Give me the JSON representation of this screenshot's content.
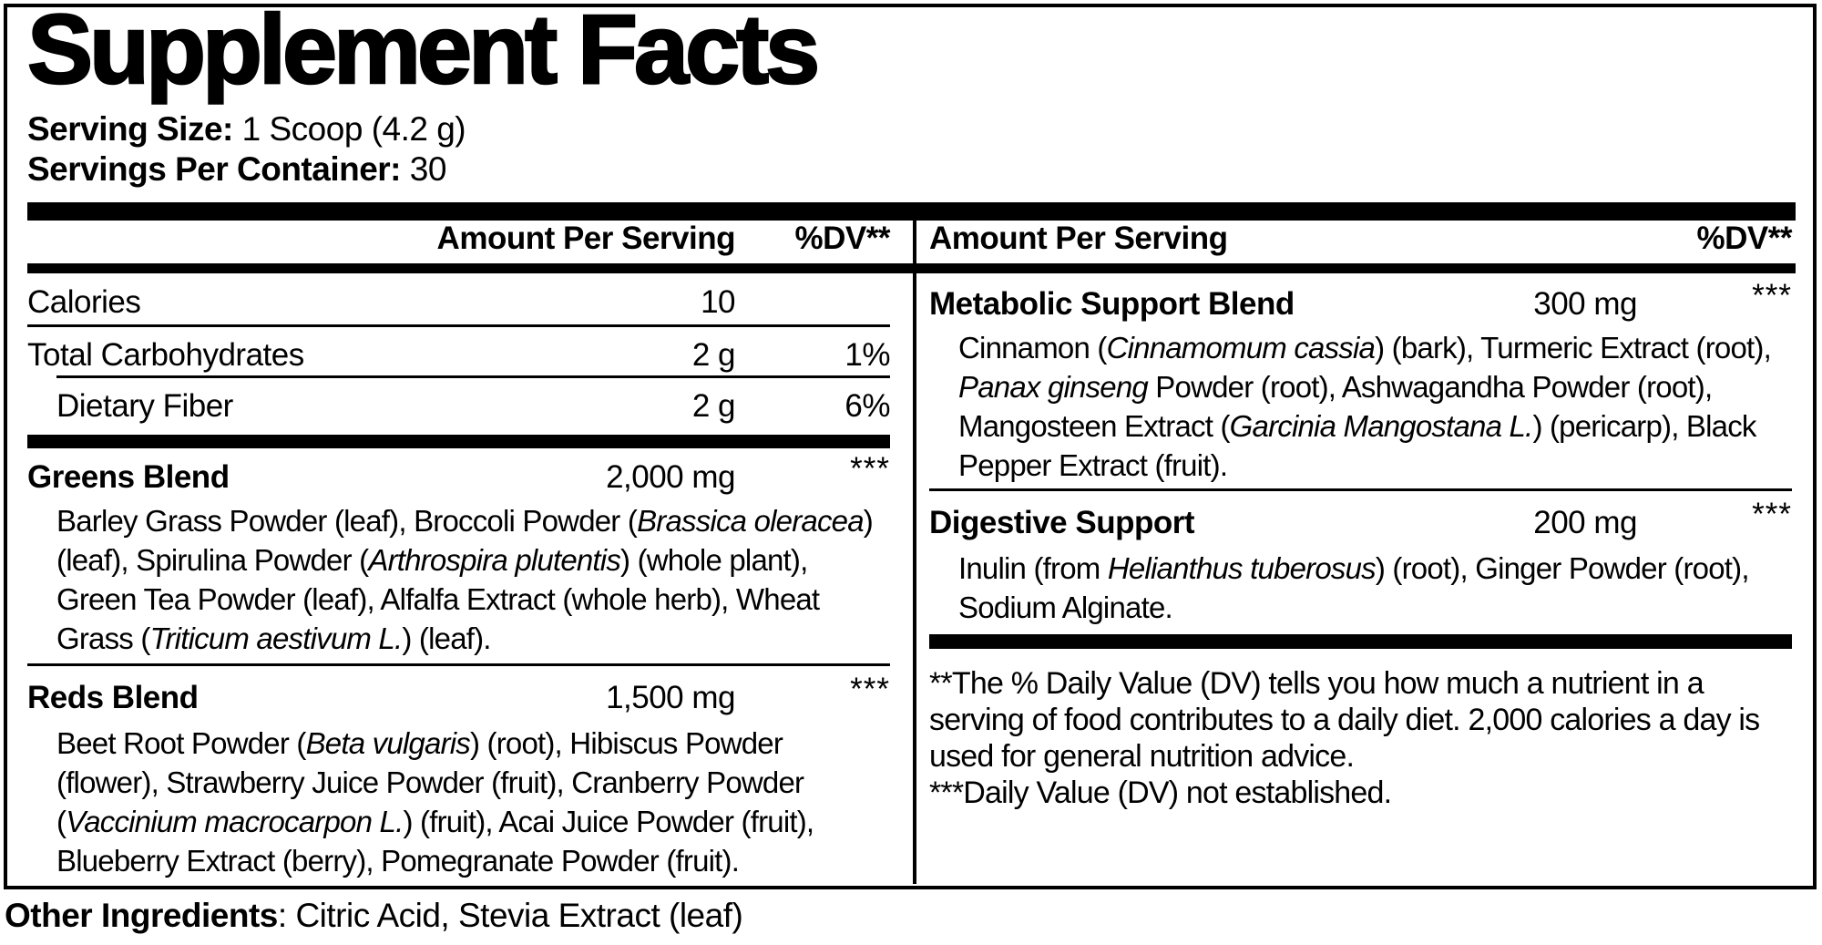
{
  "colors": {
    "text": "#000000",
    "background": "#ffffff"
  },
  "title": "Supplement Facts",
  "serving_info": {
    "serving_size_label": "Serving Size:",
    "serving_size_value": " 1 Scoop (4.2 g)",
    "servings_per_container_label": "Servings Per Container:",
    "servings_per_container_value": " 30"
  },
  "columns": {
    "left": {
      "header": {
        "amount": "Amount Per Serving",
        "dv": "%DV**"
      },
      "nutrients": [
        {
          "name": "Calories",
          "amount": "10",
          "dv": ""
        },
        {
          "name": "Total Carbohydrates",
          "amount": "2 g",
          "dv": "1%"
        },
        {
          "name": "Dietary Fiber",
          "amount": "2 g",
          "dv": "6%"
        }
      ],
      "blends": [
        {
          "name": "Greens Blend",
          "amount": "2,000 mg",
          "dv": "***",
          "description": [
            {
              "text": "Barley Grass Powder (leaf), Broccoli Powder (",
              "italic": false
            },
            {
              "text": "Brassica oleracea",
              "italic": true
            },
            {
              "text": ") (leaf), Spirulina Powder (",
              "italic": false
            },
            {
              "text": "Arthrospira plutentis",
              "italic": true
            },
            {
              "text": ") (whole plant), Green Tea Powder (leaf), Alfalfa Extract (whole herb), Wheat Grass (",
              "italic": false
            },
            {
              "text": "Triticum aestivum L.",
              "italic": true
            },
            {
              "text": ") (leaf).",
              "italic": false
            }
          ]
        },
        {
          "name": "Reds Blend",
          "amount": "1,500 mg",
          "dv": "***",
          "description": [
            {
              "text": "Beet Root Powder (",
              "italic": false
            },
            {
              "text": "Beta vulgaris",
              "italic": true
            },
            {
              "text": ") (root), Hibiscus Powder (flower), Strawberry Juice Powder (fruit), Cranberry Powder (",
              "italic": false
            },
            {
              "text": "Vaccinium macrocarpon L.",
              "italic": true
            },
            {
              "text": ") (fruit), Acai Juice Powder (fruit), Blueberry Extract (berry), Pomegranate Powder (fruit).",
              "italic": false
            }
          ]
        }
      ]
    },
    "right": {
      "header": {
        "amount": "Amount Per Serving",
        "dv": "%DV**"
      },
      "blends": [
        {
          "name": "Metabolic Support Blend",
          "amount": "300 mg",
          "dv": "***",
          "description": [
            {
              "text": "Cinnamon (",
              "italic": false
            },
            {
              "text": "Cinnamomum cassia",
              "italic": true
            },
            {
              "text": ") (bark), Turmeric Extract (root), ",
              "italic": false
            },
            {
              "text": "Panax ginseng",
              "italic": true
            },
            {
              "text": " Powder (root), Ashwagandha Powder (root), Mangosteen Extract (",
              "italic": false
            },
            {
              "text": "Garcinia Mangostana L.",
              "italic": true
            },
            {
              "text": ") (pericarp), Black Pepper Extract (fruit).",
              "italic": false
            }
          ]
        },
        {
          "name": "Digestive Support",
          "amount": "200 mg",
          "dv": "***",
          "description": [
            {
              "text": "Inulin (from ",
              "italic": false
            },
            {
              "text": "Helianthus tuberosus",
              "italic": true
            },
            {
              "text": ") (root), Ginger Powder (root), Sodium Alginate.",
              "italic": false
            }
          ]
        }
      ],
      "footnotes": [
        "**The % Daily Value (DV) tells you how much a nutrient in a serving of food contributes to a daily diet. 2,000 calories a day is used for general nutrition advice.",
        "***Daily Value (DV) not established."
      ]
    }
  },
  "other_ingredients": {
    "label": "Other Ingredients",
    "value": ": Citric Acid, Stevia Extract (leaf)"
  }
}
